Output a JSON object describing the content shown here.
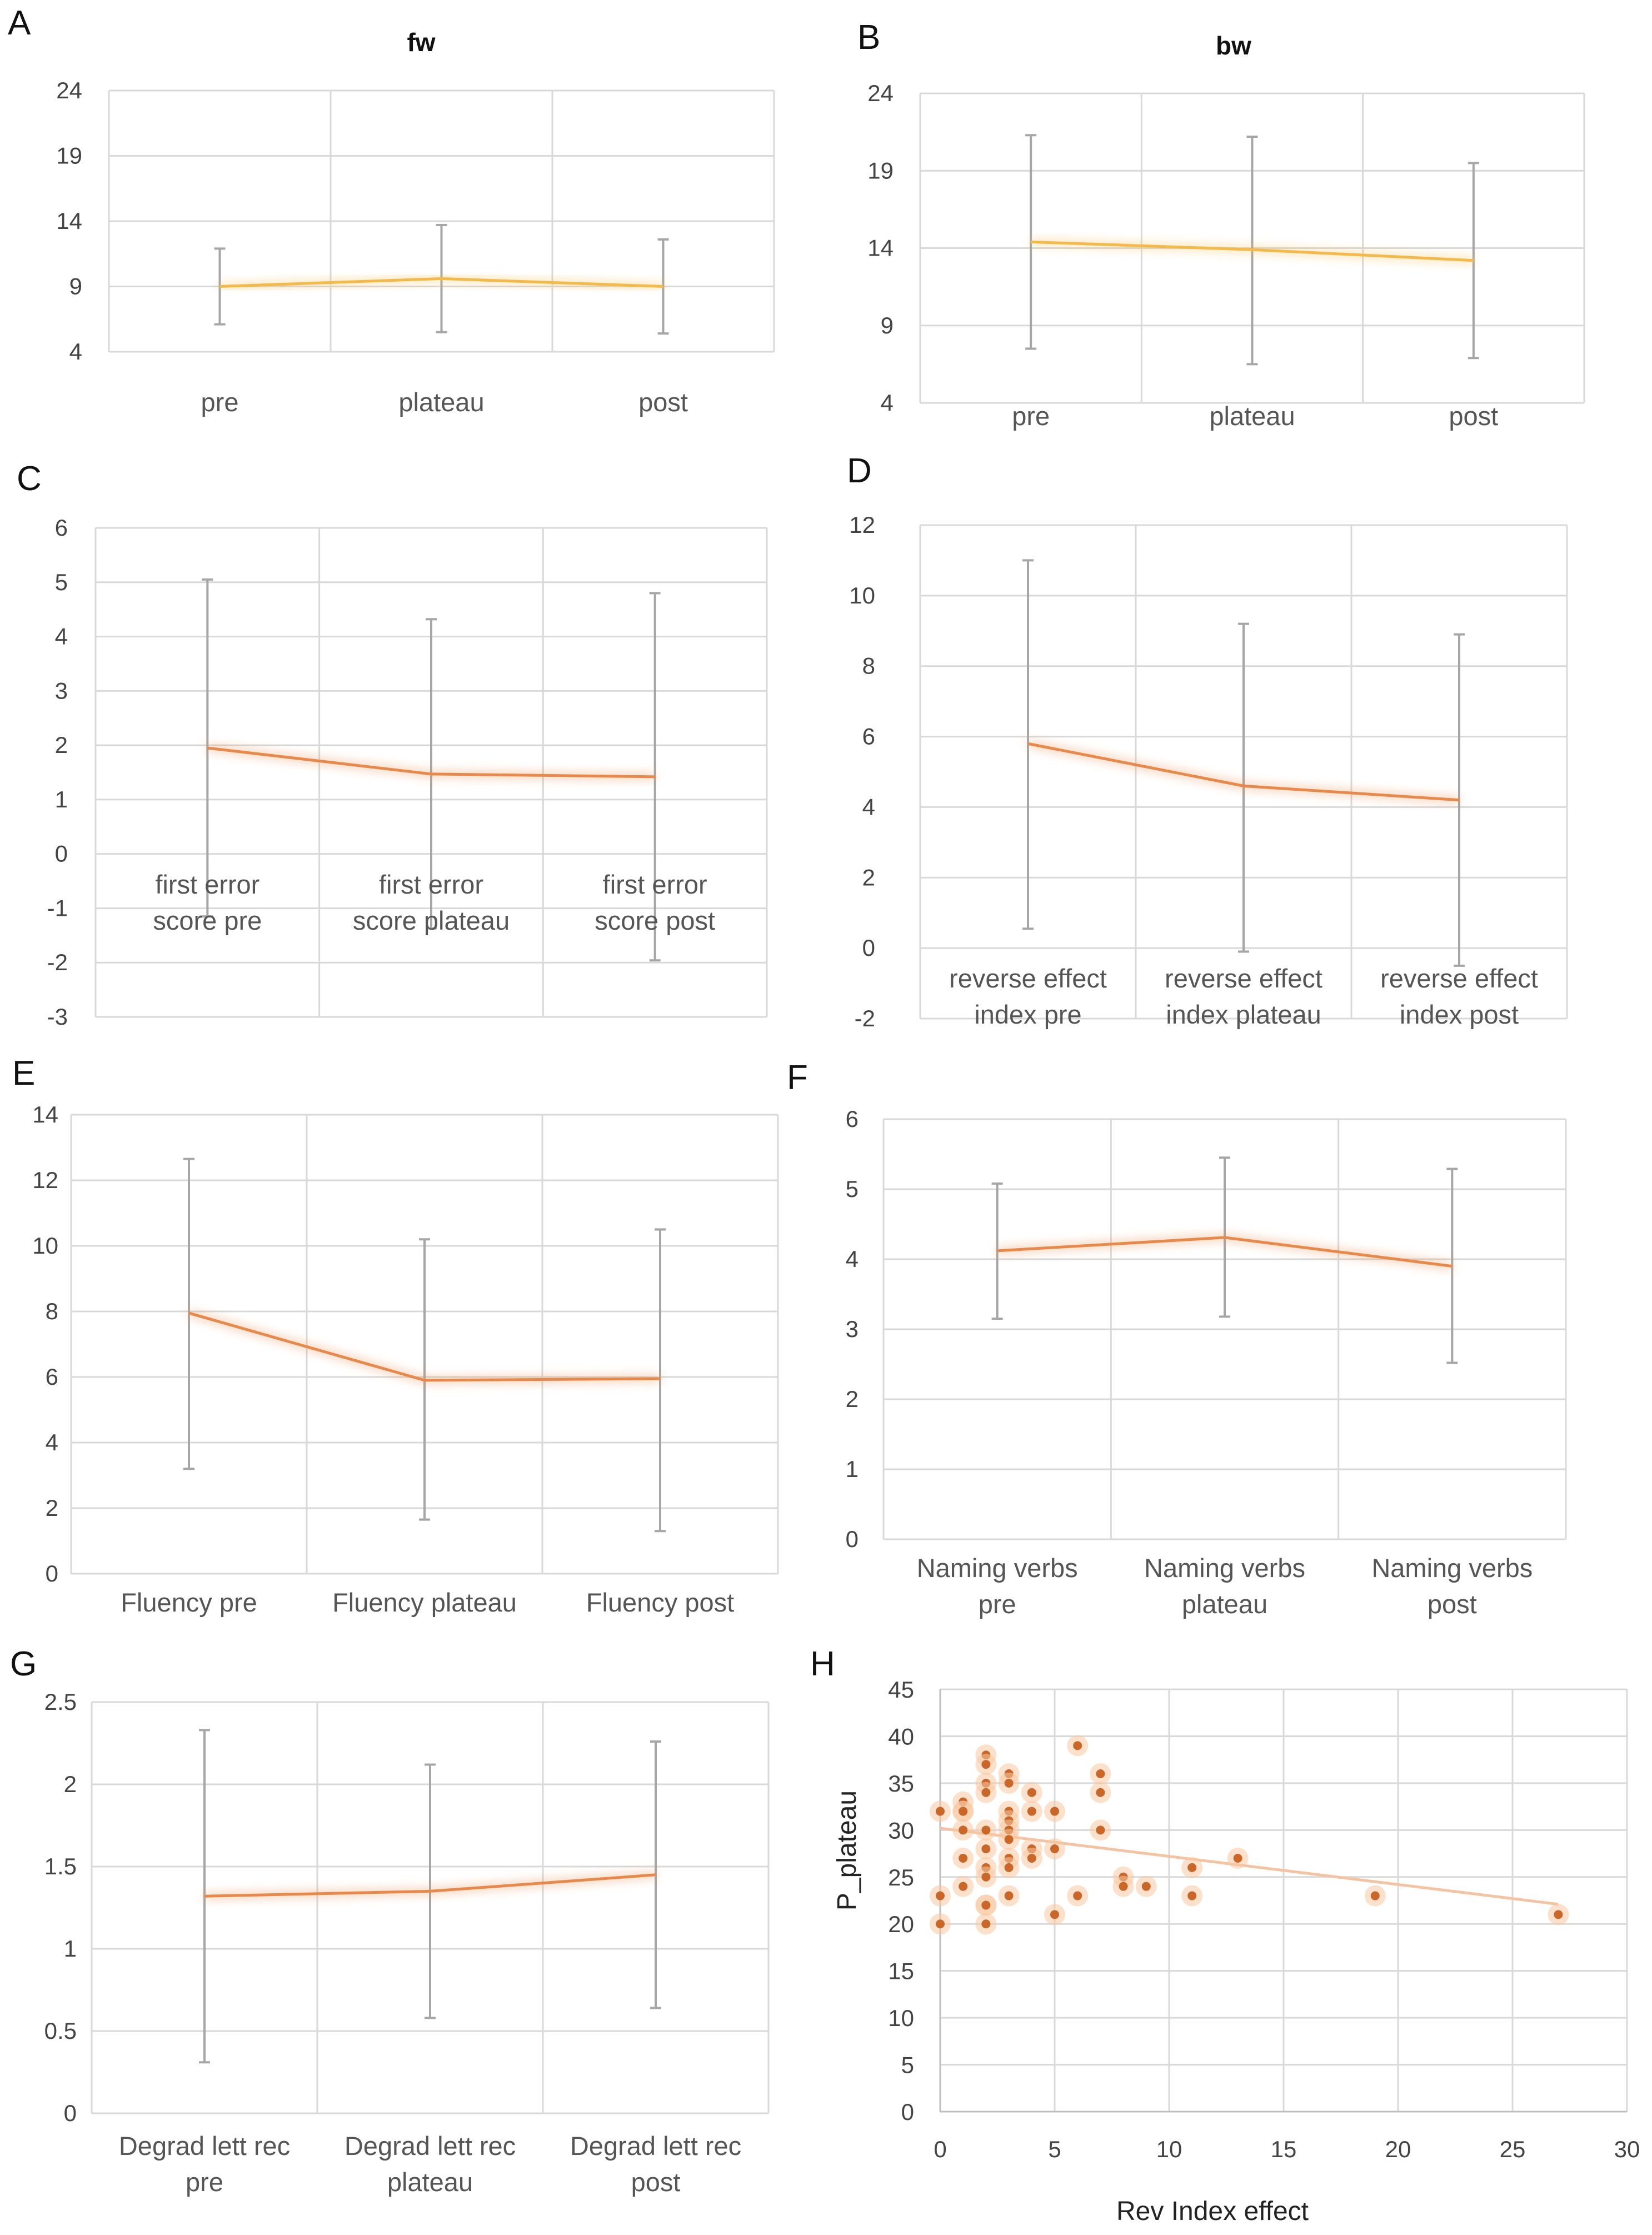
{
  "figure": {
    "panels": [
      "A",
      "B",
      "C",
      "D",
      "E",
      "F",
      "G",
      "H"
    ]
  },
  "chart_data": [
    {
      "id": "A",
      "type": "line",
      "title": "fw",
      "categories": [
        "pre",
        "plateau",
        "post"
      ],
      "values": [
        9.0,
        9.6,
        9.0
      ],
      "error_high": [
        11.9,
        13.7,
        12.6
      ],
      "error_low": [
        6.1,
        5.5,
        5.4
      ],
      "ylim": [
        4,
        24
      ],
      "yticks": [
        4,
        9,
        14,
        19,
        24
      ],
      "color": "#f5b94a"
    },
    {
      "id": "B",
      "type": "line",
      "title": "bw",
      "categories": [
        "pre",
        "plateau",
        "post"
      ],
      "values": [
        14.4,
        13.9,
        13.2
      ],
      "error_high": [
        21.3,
        21.2,
        19.5
      ],
      "error_low": [
        7.5,
        6.5,
        6.9
      ],
      "ylim": [
        4,
        24
      ],
      "yticks": [
        4,
        9,
        14,
        19,
        24
      ],
      "color": "#f5b94a"
    },
    {
      "id": "C",
      "type": "line",
      "title": "",
      "categories": [
        "first error score pre",
        "first error score plateau",
        "first error score post"
      ],
      "values": [
        1.95,
        1.47,
        1.42
      ],
      "error_high": [
        5.05,
        4.32,
        4.8
      ],
      "error_low": [
        -1.15,
        -1.37,
        -1.96
      ],
      "ylim": [
        -3,
        6
      ],
      "yticks": [
        -3,
        -2,
        -1,
        0,
        1,
        2,
        3,
        4,
        5,
        6
      ],
      "color": "#e8894a"
    },
    {
      "id": "D",
      "type": "line",
      "title": "",
      "categories": [
        "reverse effect index pre",
        "reverse effect index plateau",
        "reverse effect index post"
      ],
      "values": [
        5.8,
        4.6,
        4.2
      ],
      "error_high": [
        11.0,
        9.2,
        8.9
      ],
      "error_low": [
        0.55,
        -0.1,
        -0.5
      ],
      "ylim": [
        -2,
        12
      ],
      "yticks": [
        -2,
        0,
        2,
        4,
        6,
        8,
        10,
        12
      ],
      "color": "#e8894a"
    },
    {
      "id": "E",
      "type": "line",
      "title": "",
      "categories": [
        "Fluency pre",
        "Fluency plateau",
        "Fluency post"
      ],
      "values": [
        7.95,
        5.9,
        5.95
      ],
      "error_high": [
        12.65,
        10.2,
        10.5
      ],
      "error_low": [
        3.2,
        1.65,
        1.3
      ],
      "ylim": [
        0,
        14
      ],
      "yticks": [
        0,
        2,
        4,
        6,
        8,
        10,
        12,
        14
      ],
      "color": "#e8894a"
    },
    {
      "id": "F",
      "type": "line",
      "title": "",
      "categories": [
        "Naming verbs pre",
        "Naming verbs plateau",
        "Naming verbs post"
      ],
      "values": [
        4.12,
        4.31,
        3.9
      ],
      "error_high": [
        5.08,
        5.45,
        5.29
      ],
      "error_low": [
        3.15,
        3.18,
        2.52
      ],
      "ylim": [
        0,
        6
      ],
      "yticks": [
        0,
        1,
        2,
        3,
        4,
        5,
        6
      ],
      "color": "#e8894a"
    },
    {
      "id": "G",
      "type": "line",
      "title": "",
      "categories": [
        "Degrad lett rec pre",
        "Degrad lett rec plateau",
        "Degrad lett rec post"
      ],
      "values": [
        1.32,
        1.35,
        1.45
      ],
      "error_high": [
        2.33,
        2.12,
        2.26
      ],
      "error_low": [
        0.31,
        0.58,
        0.64
      ],
      "ylim": [
        0,
        2.5
      ],
      "yticks": [
        0,
        0.5,
        1,
        1.5,
        2,
        2.5
      ],
      "color": "#e8894a"
    },
    {
      "id": "H",
      "type": "scatter",
      "title": "",
      "xlabel": "Rev Index effect",
      "ylabel": "P_plateau",
      "xlim": [
        0,
        30
      ],
      "ylim": [
        0,
        45
      ],
      "xticks": [
        0,
        5,
        10,
        15,
        20,
        25,
        30
      ],
      "yticks": [
        0,
        5,
        10,
        15,
        20,
        25,
        30,
        35,
        40,
        45
      ],
      "points": [
        [
          0,
          32
        ],
        [
          0,
          23
        ],
        [
          0,
          20
        ],
        [
          1,
          33
        ],
        [
          1,
          32
        ],
        [
          1,
          32
        ],
        [
          1,
          30
        ],
        [
          1,
          27
        ],
        [
          1,
          24
        ],
        [
          2,
          38
        ],
        [
          2,
          37
        ],
        [
          2,
          35
        ],
        [
          2,
          34
        ],
        [
          2,
          30
        ],
        [
          2,
          28
        ],
        [
          2,
          26
        ],
        [
          2,
          25
        ],
        [
          2,
          22
        ],
        [
          2,
          22
        ],
        [
          2,
          20
        ],
        [
          3,
          36
        ],
        [
          3,
          35
        ],
        [
          3,
          32
        ],
        [
          3,
          31
        ],
        [
          3,
          30
        ],
        [
          3,
          29
        ],
        [
          3,
          27
        ],
        [
          3,
          26
        ],
        [
          3,
          23
        ],
        [
          4,
          34
        ],
        [
          4,
          32
        ],
        [
          4,
          28
        ],
        [
          4,
          27
        ],
        [
          5,
          32
        ],
        [
          5,
          28
        ],
        [
          5,
          21
        ],
        [
          6,
          39
        ],
        [
          6,
          23
        ],
        [
          7,
          36
        ],
        [
          7,
          34
        ],
        [
          7,
          30
        ],
        [
          8,
          25
        ],
        [
          8,
          24
        ],
        [
          9,
          24
        ],
        [
          11,
          26
        ],
        [
          11,
          23
        ],
        [
          13,
          27
        ],
        [
          19,
          23
        ],
        [
          27,
          21
        ]
      ],
      "trendline": {
        "x": [
          0,
          27
        ],
        "y": [
          30.2,
          22.1
        ]
      },
      "color": "#e8894a"
    }
  ]
}
